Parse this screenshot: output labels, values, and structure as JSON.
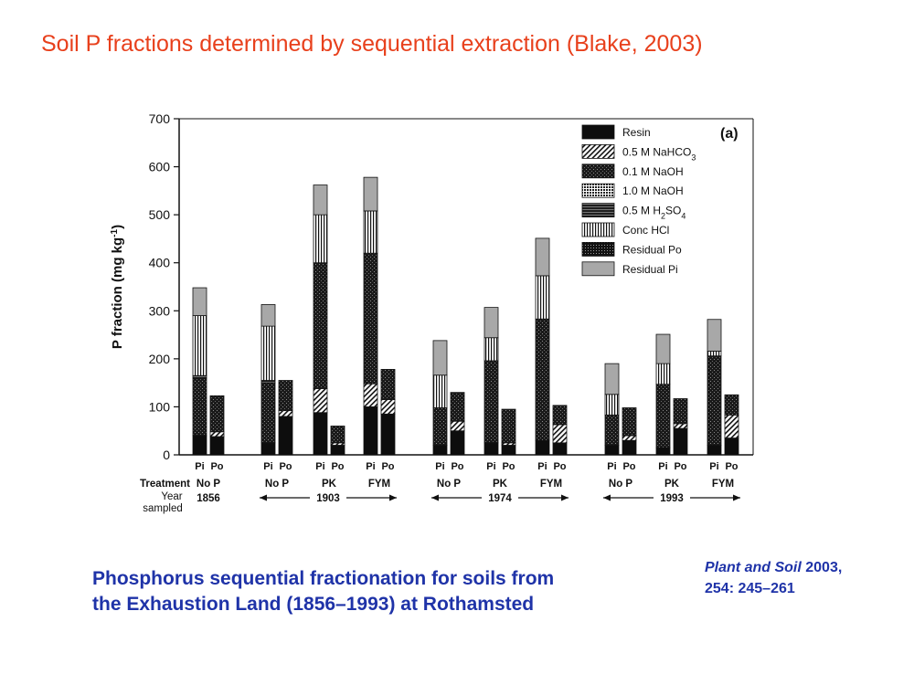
{
  "slide": {
    "title": "Soil P fractions determined by sequential extraction (Blake, 2003)",
    "caption_line1": "Phosphorus sequential fractionation for soils from",
    "caption_line2": "the Exhaustion Land (1856–1993) at Rothamsted",
    "reference_journal": "Plant and Soil",
    "reference_year": " 2003,",
    "reference_pages": "254: 245–261"
  },
  "colors": {
    "title": "#e8401c",
    "caption": "#1f33a8",
    "fractions": [
      "#111111",
      "#8a8a8a",
      "#2b2b2b",
      "#5e5e5e",
      "#444444",
      "#f2f2f2",
      "#1b1b1b",
      "#a3a3a3"
    ]
  },
  "chart_data": {
    "type": "bar",
    "stacked": true,
    "panel_label": "(a)",
    "ylabel": "P fraction (mg kg",
    "ylabel_exp": "-1",
    "ylabel_close": ")",
    "ylim": [
      0,
      700
    ],
    "yticks": [
      0,
      100,
      200,
      300,
      400,
      500,
      600,
      700
    ],
    "legend_position": "top-right",
    "row_labels": {
      "treatment": "Treatment",
      "year_line1": "Year",
      "year_line2": "sampled"
    },
    "fractions": [
      {
        "name": "Resin"
      },
      {
        "name": "0.5 M NaHCO",
        "sub": "3"
      },
      {
        "name": "0.1 M NaOH"
      },
      {
        "name": "1.0 M NaOH"
      },
      {
        "name": "0.5 M H",
        "sub": "2",
        "rest": "SO",
        "sub2": "4"
      },
      {
        "name": "Conc HCl"
      },
      {
        "name": "Residual Po"
      },
      {
        "name": "Residual Pi"
      }
    ],
    "year_groups": [
      {
        "year": "1856",
        "arrows": false
      },
      {
        "year": "1903",
        "arrows": true
      },
      {
        "year": "1974",
        "arrows": true
      },
      {
        "year": "1993",
        "arrows": true
      }
    ],
    "groups": [
      {
        "treatment": "No P",
        "year_group": 0,
        "pi": {
          "label": "Pi",
          "fractions": [
            40,
            0,
            120,
            0,
            5,
            125,
            0,
            58
          ]
        },
        "po": {
          "label": "Po",
          "fractions": [
            38,
            10,
            75,
            0,
            0,
            0,
            0,
            0
          ]
        }
      },
      {
        "treatment": "No P",
        "year_group": 1,
        "pi": {
          "label": "Pi",
          "fractions": [
            25,
            0,
            125,
            0,
            5,
            113,
            0,
            45
          ]
        },
        "po": {
          "label": "Po",
          "fractions": [
            80,
            12,
            63,
            0,
            0,
            0,
            0,
            0
          ]
        }
      },
      {
        "treatment": "PK",
        "year_group": 1,
        "pi": {
          "label": "Pi",
          "fractions": [
            88,
            50,
            262,
            0,
            0,
            100,
            0,
            62
          ]
        },
        "po": {
          "label": "Po",
          "fractions": [
            20,
            5,
            35,
            0,
            0,
            0,
            0,
            0
          ]
        }
      },
      {
        "treatment": "FYM",
        "year_group": 1,
        "pi": {
          "label": "Pi",
          "fractions": [
            100,
            48,
            272,
            0,
            0,
            88,
            0,
            70
          ]
        },
        "po": {
          "label": "Po",
          "fractions": [
            85,
            30,
            63,
            0,
            0,
            0,
            0,
            0
          ]
        }
      },
      {
        "treatment": "No P",
        "year_group": 2,
        "pi": {
          "label": "Pi",
          "fractions": [
            20,
            0,
            78,
            0,
            0,
            68,
            0,
            72
          ]
        },
        "po": {
          "label": "Po",
          "fractions": [
            50,
            20,
            60,
            0,
            0,
            0,
            0,
            0
          ]
        }
      },
      {
        "treatment": "PK",
        "year_group": 2,
        "pi": {
          "label": "Pi",
          "fractions": [
            25,
            0,
            171,
            0,
            0,
            48,
            0,
            63
          ]
        },
        "po": {
          "label": "Po",
          "fractions": [
            20,
            5,
            70,
            0,
            0,
            0,
            0,
            0
          ]
        }
      },
      {
        "treatment": "FYM",
        "year_group": 2,
        "pi": {
          "label": "Pi",
          "fractions": [
            30,
            0,
            253,
            0,
            0,
            90,
            0,
            78
          ]
        },
        "po": {
          "label": "Po",
          "fractions": [
            25,
            38,
            40,
            0,
            0,
            0,
            0,
            0
          ]
        }
      },
      {
        "treatment": "No P",
        "year_group": 3,
        "pi": {
          "label": "Pi",
          "fractions": [
            20,
            0,
            63,
            0,
            0,
            43,
            0,
            64
          ]
        },
        "po": {
          "label": "Po",
          "fractions": [
            30,
            10,
            58,
            0,
            0,
            0,
            0,
            0
          ]
        }
      },
      {
        "treatment": "PK",
        "year_group": 3,
        "pi": {
          "label": "Pi",
          "fractions": [
            15,
            0,
            132,
            0,
            0,
            43,
            0,
            61
          ]
        },
        "po": {
          "label": "Po",
          "fractions": [
            55,
            10,
            52,
            0,
            0,
            0,
            0,
            0
          ]
        }
      },
      {
        "treatment": "FYM",
        "year_group": 3,
        "pi": {
          "label": "Pi",
          "fractions": [
            20,
            0,
            186,
            0,
            0,
            10,
            0,
            66
          ]
        },
        "po": {
          "label": "Po",
          "fractions": [
            35,
            48,
            42,
            0,
            0,
            0,
            0,
            0
          ]
        }
      }
    ]
  }
}
